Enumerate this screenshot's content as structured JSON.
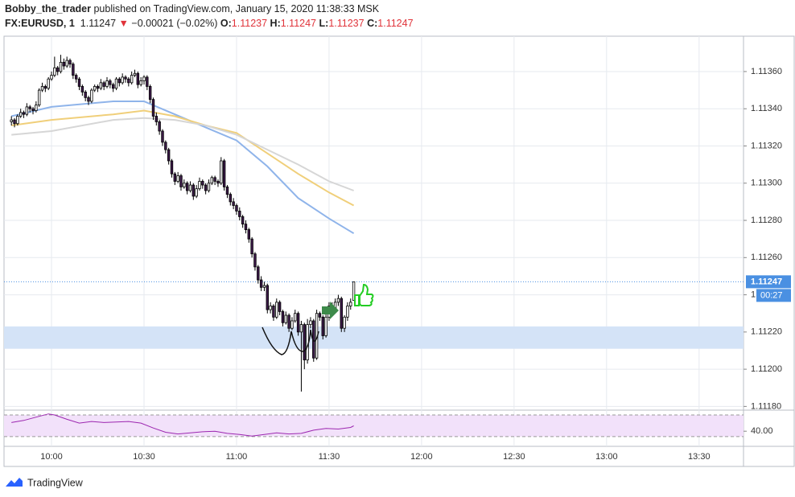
{
  "header": {
    "author": "Bobby_the_trader",
    "published": "published on TradingView.com, January 15, 2020 11:38:33 MSK",
    "symbol": "FX:EURUSD, 1",
    "last": "1.11247",
    "arrow": "▼",
    "change": "−0.00021 (−0.02%)",
    "ohlc": [
      {
        "key": "O:",
        "value": "1.11237"
      },
      {
        "key": "H:",
        "value": "1.11247"
      },
      {
        "key": "L:",
        "value": "1.11237"
      },
      {
        "key": "C:",
        "value": "1.11247"
      }
    ]
  },
  "footer": {
    "brand": "TradingView"
  },
  "chart_data": {
    "type": "candlestick",
    "xlim": [
      584.6,
      824.4
    ],
    "xticks": [
      {
        "value": 600,
        "label": "10:00"
      },
      {
        "value": 630,
        "label": "10:30"
      },
      {
        "value": 660,
        "label": "11:00"
      },
      {
        "value": 690,
        "label": "11:30"
      },
      {
        "value": 720,
        "label": "12:00"
      },
      {
        "value": 750,
        "label": "12:30"
      },
      {
        "value": 780,
        "label": "13:00"
      },
      {
        "value": 810,
        "label": "13:30"
      }
    ],
    "ylim": [
      1.11178,
      1.11379
    ],
    "yticks": [
      {
        "value": 1.1118,
        "label": "1.11180"
      },
      {
        "value": 1.112,
        "label": "1.11200"
      },
      {
        "value": 1.1122,
        "label": "1.11220"
      },
      {
        "value": 1.1124,
        "label": "1.11240"
      },
      {
        "value": 1.1126,
        "label": "1.11260"
      },
      {
        "value": 1.1128,
        "label": "1.11280"
      },
      {
        "value": 1.113,
        "label": "1.11300"
      },
      {
        "value": 1.1132,
        "label": "1.11320"
      },
      {
        "value": 1.1134,
        "label": "1.11340"
      },
      {
        "value": 1.1136,
        "label": "1.11360"
      }
    ],
    "grid": true,
    "up_color": "#ffffff",
    "down_color": "#3d1a4a",
    "border_color": "#000000",
    "x": [
      587,
      588,
      589,
      590,
      591,
      592,
      593,
      594,
      595,
      596,
      597,
      598,
      599,
      600,
      601,
      602,
      603,
      604,
      605,
      606,
      607,
      608,
      609,
      610,
      611,
      612,
      613,
      614,
      615,
      616,
      617,
      618,
      619,
      620,
      621,
      622,
      623,
      624,
      625,
      626,
      627,
      628,
      629,
      630,
      631,
      632,
      633,
      634,
      635,
      636,
      637,
      638,
      639,
      640,
      641,
      642,
      643,
      644,
      645,
      646,
      647,
      648,
      649,
      650,
      651,
      652,
      653,
      654,
      655,
      656,
      657,
      658,
      659,
      660,
      661,
      662,
      663,
      664,
      665,
      666,
      667,
      668,
      669,
      670,
      671,
      672,
      673,
      674,
      675,
      676,
      677,
      678,
      679,
      680,
      681,
      682,
      683,
      684,
      685,
      686,
      687,
      688,
      689,
      690,
      691,
      692,
      693,
      694,
      695,
      696,
      697,
      698
    ],
    "ohlc": [
      [
        1.11333,
        1.11336,
        1.11331,
        1.11334
      ],
      [
        1.11334,
        1.11335,
        1.1133,
        1.11332
      ],
      [
        1.11332,
        1.11337,
        1.11331,
        1.11336
      ],
      [
        1.11336,
        1.1134,
        1.11335,
        1.11338
      ],
      [
        1.11338,
        1.11339,
        1.11335,
        1.11337
      ],
      [
        1.11337,
        1.11343,
        1.11336,
        1.11341
      ],
      [
        1.11341,
        1.11342,
        1.11338,
        1.1134
      ],
      [
        1.1134,
        1.11341,
        1.11337,
        1.11339
      ],
      [
        1.11339,
        1.11344,
        1.11338,
        1.11342
      ],
      [
        1.11342,
        1.11351,
        1.11341,
        1.1135
      ],
      [
        1.1135,
        1.11354,
        1.11349,
        1.11352
      ],
      [
        1.11352,
        1.11353,
        1.11349,
        1.11351
      ],
      [
        1.11351,
        1.11357,
        1.1135,
        1.11356
      ],
      [
        1.11356,
        1.1136,
        1.11355,
        1.11358
      ],
      [
        1.11358,
        1.11368,
        1.11357,
        1.11362
      ],
      [
        1.11362,
        1.11363,
        1.11358,
        1.1136
      ],
      [
        1.1136,
        1.11369,
        1.11359,
        1.11365
      ],
      [
        1.11365,
        1.11367,
        1.11361,
        1.11363
      ],
      [
        1.11363,
        1.11368,
        1.11362,
        1.11366
      ],
      [
        1.11366,
        1.11367,
        1.11362,
        1.11364
      ],
      [
        1.11364,
        1.11365,
        1.11356,
        1.11358
      ],
      [
        1.11358,
        1.11359,
        1.11354,
        1.11356
      ],
      [
        1.11356,
        1.11357,
        1.1135,
        1.11352
      ],
      [
        1.11352,
        1.11353,
        1.11347,
        1.11349
      ],
      [
        1.11349,
        1.1135,
        1.11344,
        1.11346
      ],
      [
        1.11346,
        1.11347,
        1.11342,
        1.11344
      ],
      [
        1.11344,
        1.11351,
        1.11343,
        1.1135
      ],
      [
        1.1135,
        1.11353,
        1.11349,
        1.11352
      ],
      [
        1.11352,
        1.11353,
        1.11349,
        1.11351
      ],
      [
        1.11351,
        1.11356,
        1.1135,
        1.11354
      ],
      [
        1.11354,
        1.11355,
        1.1135,
        1.11352
      ],
      [
        1.11352,
        1.11357,
        1.11351,
        1.11355
      ],
      [
        1.11355,
        1.11356,
        1.11351,
        1.11353
      ],
      [
        1.11353,
        1.11354,
        1.11349,
        1.11351
      ],
      [
        1.11351,
        1.11357,
        1.1135,
        1.11356
      ],
      [
        1.11356,
        1.11357,
        1.11352,
        1.11354
      ],
      [
        1.11354,
        1.11359,
        1.11353,
        1.11357
      ],
      [
        1.11357,
        1.11358,
        1.11354,
        1.11356
      ],
      [
        1.11356,
        1.11357,
        1.11352,
        1.11354
      ],
      [
        1.11354,
        1.1136,
        1.11353,
        1.11358
      ],
      [
        1.11358,
        1.11361,
        1.11357,
        1.11359
      ],
      [
        1.11359,
        1.1136,
        1.11351,
        1.11353
      ],
      [
        1.11353,
        1.11357,
        1.11352,
        1.11355
      ],
      [
        1.11355,
        1.11358,
        1.11353,
        1.11357
      ],
      [
        1.11357,
        1.11358,
        1.1135,
        1.11352
      ],
      [
        1.11352,
        1.11353,
        1.11343,
        1.11345
      ],
      [
        1.11345,
        1.11346,
        1.11334,
        1.11336
      ],
      [
        1.11336,
        1.11338,
        1.11331,
        1.11333
      ],
      [
        1.11333,
        1.11334,
        1.11326,
        1.11328
      ],
      [
        1.11328,
        1.11329,
        1.1132,
        1.11322
      ],
      [
        1.11322,
        1.11323,
        1.11316,
        1.11318
      ],
      [
        1.11318,
        1.11319,
        1.1131,
        1.11312
      ],
      [
        1.11312,
        1.11313,
        1.11303,
        1.11305
      ],
      [
        1.11305,
        1.11306,
        1.11299,
        1.11301
      ],
      [
        1.11301,
        1.11306,
        1.113,
        1.11304
      ],
      [
        1.11304,
        1.11305,
        1.11296,
        1.11298
      ],
      [
        1.11298,
        1.11302,
        1.11297,
        1.113
      ],
      [
        1.113,
        1.11301,
        1.11294,
        1.11296
      ],
      [
        1.11296,
        1.11301,
        1.11295,
        1.11299
      ],
      [
        1.11299,
        1.113,
        1.11291,
        1.11293
      ],
      [
        1.11293,
        1.11299,
        1.11292,
        1.11297
      ],
      [
        1.11297,
        1.11303,
        1.11296,
        1.11301
      ],
      [
        1.11301,
        1.11302,
        1.11297,
        1.11299
      ],
      [
        1.11299,
        1.113,
        1.11294,
        1.11296
      ],
      [
        1.11296,
        1.11302,
        1.11295,
        1.113
      ],
      [
        1.113,
        1.11304,
        1.11299,
        1.11303
      ],
      [
        1.11303,
        1.11304,
        1.11299,
        1.11301
      ],
      [
        1.11301,
        1.11302,
        1.11298,
        1.113
      ],
      [
        1.113,
        1.11314,
        1.11299,
        1.11312
      ],
      [
        1.11312,
        1.11313,
        1.11296,
        1.11298
      ],
      [
        1.11298,
        1.11299,
        1.11292,
        1.11294
      ],
      [
        1.11294,
        1.11295,
        1.11288,
        1.1129
      ],
      [
        1.1129,
        1.11292,
        1.11286,
        1.11288
      ],
      [
        1.11288,
        1.11289,
        1.11283,
        1.11285
      ],
      [
        1.11285,
        1.11287,
        1.1128,
        1.11282
      ],
      [
        1.11282,
        1.11283,
        1.11276,
        1.11278
      ],
      [
        1.11278,
        1.1128,
        1.11273,
        1.11275
      ],
      [
        1.11275,
        1.11276,
        1.11268,
        1.1127
      ],
      [
        1.1127,
        1.11271,
        1.1126,
        1.11262
      ],
      [
        1.11262,
        1.11263,
        1.11253,
        1.11255
      ],
      [
        1.11255,
        1.11256,
        1.11246,
        1.11248
      ],
      [
        1.11248,
        1.1125,
        1.11242,
        1.11244
      ],
      [
        1.11244,
        1.11247,
        1.11242,
        1.11245
      ],
      [
        1.11245,
        1.11246,
        1.1123,
        1.11232
      ],
      [
        1.11232,
        1.11236,
        1.1123,
        1.11234
      ],
      [
        1.11234,
        1.11235,
        1.11226,
        1.11228
      ],
      [
        1.11228,
        1.11238,
        1.11227,
        1.11236
      ],
      [
        1.11236,
        1.11237,
        1.11229,
        1.11231
      ],
      [
        1.11231,
        1.11232,
        1.11223,
        1.11225
      ],
      [
        1.11225,
        1.11231,
        1.11224,
        1.11229
      ],
      [
        1.11229,
        1.1123,
        1.1122,
        1.11222
      ],
      [
        1.11222,
        1.11228,
        1.11221,
        1.11226
      ],
      [
        1.11226,
        1.11232,
        1.11225,
        1.1123
      ],
      [
        1.1123,
        1.11231,
        1.11218,
        1.1122
      ],
      [
        1.1122,
        1.11226,
        1.11188,
        1.11224
      ],
      [
        1.11224,
        1.11225,
        1.112,
        1.11205
      ],
      [
        1.11205,
        1.11227,
        1.11203,
        1.11224
      ],
      [
        1.11224,
        1.11228,
        1.11222,
        1.11226
      ],
      [
        1.11226,
        1.11227,
        1.11204,
        1.11206
      ],
      [
        1.11206,
        1.11232,
        1.11205,
        1.1123
      ],
      [
        1.1123,
        1.11231,
        1.11226,
        1.11228
      ],
      [
        1.11228,
        1.11229,
        1.11216,
        1.11218
      ],
      [
        1.11218,
        1.11233,
        1.11217,
        1.11228
      ],
      [
        1.11228,
        1.11236,
        1.11226,
        1.11234
      ],
      [
        1.11234,
        1.11236,
        1.11229,
        1.11231
      ],
      [
        1.11231,
        1.11238,
        1.1123,
        1.11236
      ],
      [
        1.11236,
        1.1124,
        1.11234,
        1.11238
      ],
      [
        1.11238,
        1.11239,
        1.1122,
        1.11222
      ],
      [
        1.11222,
        1.11229,
        1.1122,
        1.11228
      ],
      [
        1.11228,
        1.11236,
        1.11226,
        1.11234
      ],
      [
        1.11234,
        1.11238,
        1.11232,
        1.11236
      ],
      [
        1.11237,
        1.11247,
        1.11237,
        1.11247
      ]
    ],
    "ma": [
      {
        "color": "#8fb4ea",
        "x": [
          587,
          600,
          620,
          630,
          640,
          650,
          660,
          670,
          680,
          690,
          698
        ],
        "values": [
          1.11336,
          1.11341,
          1.11344,
          1.11344,
          1.11337,
          1.1133,
          1.11323,
          1.11309,
          1.11292,
          1.11281,
          1.11273
        ]
      },
      {
        "color": "#f0cf7a",
        "x": [
          587,
          600,
          620,
          630,
          640,
          650,
          660,
          670,
          680,
          690,
          698
        ],
        "values": [
          1.11331,
          1.11334,
          1.11337,
          1.11339,
          1.11336,
          1.11331,
          1.11327,
          1.11316,
          1.11305,
          1.11295,
          1.11288
        ]
      },
      {
        "color": "#d6d6d6",
        "x": [
          587,
          600,
          620,
          630,
          640,
          650,
          660,
          670,
          680,
          690,
          698
        ],
        "values": [
          1.11326,
          1.11328,
          1.11334,
          1.11335,
          1.11334,
          1.11331,
          1.11326,
          1.11318,
          1.1131,
          1.11301,
          1.11296
        ]
      }
    ],
    "zone": {
      "color": "#d4e3f7",
      "range": [
        1.11211,
        1.11223
      ]
    },
    "price_line": {
      "value": 1.11247,
      "label": "1.11247",
      "countdown": "00:27",
      "color": "#4a90e2"
    },
    "rsi": {
      "color": "#9c27b0",
      "band_color": "#f2e1fa",
      "ylim": [
        12,
        79
      ],
      "bands": [
        30,
        70
      ],
      "yticks": [
        {
          "value": 40,
          "label": "40.00"
        }
      ],
      "x": [
        587,
        591,
        595,
        599,
        601,
        605,
        609,
        613,
        617,
        621,
        625,
        629,
        633,
        637,
        641,
        645,
        649,
        653,
        657,
        661,
        665,
        669,
        673,
        677,
        681,
        685,
        689,
        693,
        697,
        698
      ],
      "values": [
        56,
        60,
        66,
        72,
        70,
        62,
        55,
        58,
        56,
        57,
        58,
        55,
        46,
        38,
        35,
        37,
        39,
        40,
        36,
        34,
        31,
        34,
        37,
        35,
        36,
        42,
        45,
        44,
        47,
        50
      ]
    }
  }
}
